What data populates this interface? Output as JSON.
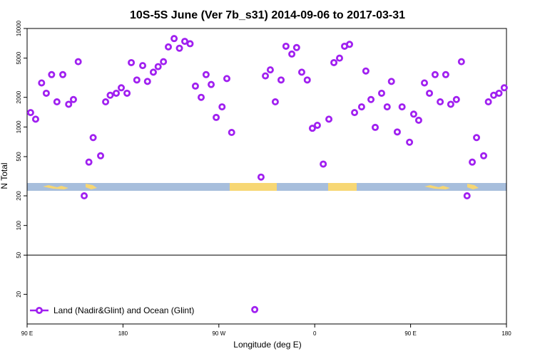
{
  "chart_data": {
    "type": "scatter",
    "title": "10S-5S June (Ver 7b_s31)   2014-09-06 to 2017-03-31",
    "xlabel": "Longitude (deg E)",
    "ylabel": "N Total",
    "xlim": [
      90,
      540
    ],
    "xticks": [
      {
        "value": 90,
        "label": "90 E"
      },
      180,
      {
        "value": 270,
        "label": "90 W"
      },
      {
        "value": 360,
        "label": "0"
      },
      {
        "value": 450,
        "label": "90 E"
      },
      {
        "value": 540,
        "label": "180"
      }
    ],
    "ylim": [
      10,
      10000
    ],
    "yticks": [
      20,
      50,
      100,
      200,
      500,
      1000,
      2000,
      5000,
      10000
    ],
    "log_y": true,
    "hline": 50,
    "legend": "lower left",
    "series": [
      {
        "name": "Land (Nadir&Glint) and Ocean (Glint)",
        "color": "#a020f0",
        "x": [
          93.3,
          98,
          103.6,
          108,
          113,
          118,
          123.5,
          129,
          133.5,
          138,
          143.6,
          148,
          152,
          159,
          163.7,
          168,
          173.7,
          178.4,
          183.8,
          187.8,
          193,
          198.5,
          203,
          208.5,
          213,
          218,
          222.6,
          228,
          233,
          238,
          243,
          248,
          253.4,
          258,
          262.8,
          267.5,
          273,
          277.5,
          282,
          303.7,
          309.6,
          313.7,
          318.3,
          323,
          328.4,
          333,
          338.5,
          343,
          347.8,
          353,
          357.8,
          362.5,
          368,
          373.3,
          378,
          383.3,
          388,
          392.7,
          397.4,
          404,
          408,
          412.8,
          416.8,
          422.8,
          428,
          432,
          437.5,
          442,
          449,
          452.9,
          457.6,
          463,
          467.7,
          473,
          477.8,
          483,
          487.7,
          493,
          497.7,
          503,
          507.9,
          511.9,
          518.6,
          523,
          528,
          533,
          537.9
        ],
        "values": [
          1400,
          1200,
          2800,
          2200,
          3400,
          1800,
          3400,
          1700,
          1900,
          4600,
          200,
          440,
          780,
          510,
          1800,
          2100,
          2200,
          2500,
          2200,
          4500,
          3000,
          4200,
          2900,
          3600,
          4100,
          4600,
          6500,
          7900,
          6300,
          7400,
          7000,
          2600,
          2000,
          3400,
          2700,
          1250,
          1600,
          3100,
          880,
          14,
          310,
          3300,
          3800,
          1800,
          3000,
          6600,
          5500,
          6400,
          3600,
          3000,
          970,
          1040,
          420,
          1200,
          4500,
          5000,
          6600,
          6900,
          1400,
          1600,
          3700,
          1900,
          990,
          2200,
          1600,
          2900,
          890,
          1600,
          700,
          1350,
          1170,
          2800,
          2200,
          3400,
          1800,
          3400,
          1700,
          1900,
          4600,
          200,
          440,
          780,
          510,
          1800,
          2100,
          2200,
          2500
        ]
      }
    ]
  }
}
